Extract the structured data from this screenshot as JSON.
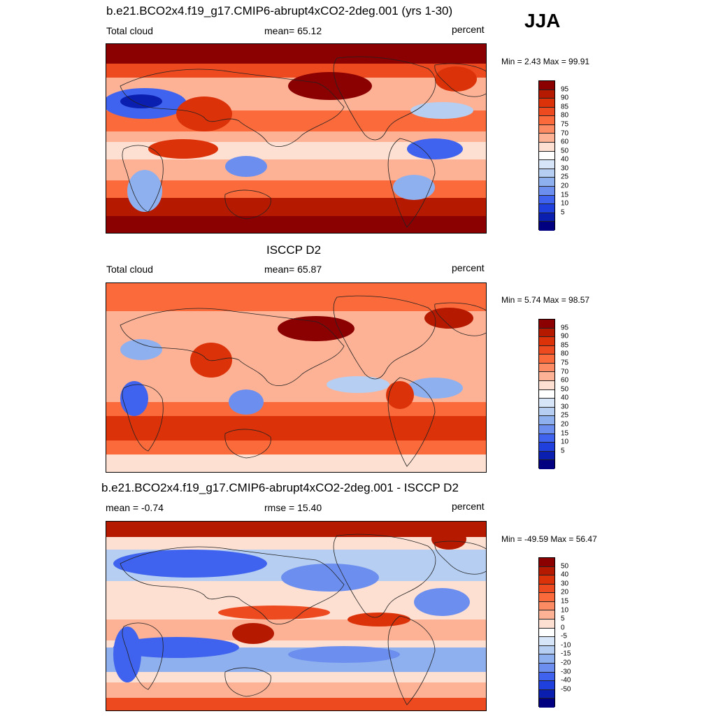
{
  "season_label": "JJA",
  "chart_data": [
    {
      "type": "heatmap",
      "title": "b.e21.BCO2x4.f19_g17.CMIP6-abrupt4xCO2-2deg.001 (yrs 1-30)",
      "left_label": "Total cloud",
      "center_label": "mean=  65.12",
      "units": "percent",
      "minmax": "Min =   2.43 Max =  99.91",
      "stats": {
        "mean": 65.12,
        "min": 2.43,
        "max": 99.91
      },
      "colorbar_labels": [
        "95",
        "90",
        "85",
        "80",
        "75",
        "70",
        "60",
        "50",
        "40",
        "30",
        "25",
        "20",
        "15",
        "10",
        "5"
      ],
      "colors": [
        "#8b0000",
        "#b51a00",
        "#dc3209",
        "#ee4a20",
        "#fb6a3b",
        "#fc8b63",
        "#fdb296",
        "#fee0d2",
        "#ffffff",
        "#d6e6f8",
        "#b5cef1",
        "#8fb0ef",
        "#6c8fef",
        "#3f63ee",
        "#1f40dc",
        "#0a1fb0",
        "#000080"
      ]
    },
    {
      "type": "heatmap",
      "title": "ISCCP D2",
      "left_label": "Total cloud",
      "center_label": "mean=  65.87",
      "units": "percent",
      "minmax": "Min =   5.74 Max =  98.57",
      "stats": {
        "mean": 65.87,
        "min": 5.74,
        "max": 98.57
      },
      "colorbar_labels": [
        "95",
        "90",
        "85",
        "80",
        "75",
        "70",
        "60",
        "50",
        "40",
        "30",
        "25",
        "20",
        "15",
        "10",
        "5"
      ],
      "colors": [
        "#8b0000",
        "#b51a00",
        "#dc3209",
        "#ee4a20",
        "#fb6a3b",
        "#fc8b63",
        "#fdb296",
        "#fee0d2",
        "#ffffff",
        "#d6e6f8",
        "#b5cef1",
        "#8fb0ef",
        "#6c8fef",
        "#3f63ee",
        "#1f40dc",
        "#0a1fb0",
        "#000080"
      ]
    },
    {
      "type": "heatmap",
      "title": "b.e21.BCO2x4.f19_g17.CMIP6-abrupt4xCO2-2deg.001 - ISCCP D2",
      "left_label": "mean =  -0.74",
      "center_label": "rmse =  15.40",
      "units": "percent",
      "minmax": "Min = -49.59 Max =  56.47",
      "stats": {
        "mean": -0.74,
        "rmse": 15.4,
        "min": -49.59,
        "max": 56.47
      },
      "colorbar_labels": [
        "50",
        "40",
        "30",
        "20",
        "15",
        "10",
        "5",
        "0",
        "-5",
        "-10",
        "-15",
        "-20",
        "-30",
        "-40",
        "-50"
      ],
      "colors": [
        "#8b0000",
        "#b51a00",
        "#dc3209",
        "#ee4a20",
        "#fb6a3b",
        "#fc8b63",
        "#fdb296",
        "#fee0d2",
        "#ffffff",
        "#d6e6f8",
        "#b5cef1",
        "#8fb0ef",
        "#6c8fef",
        "#3f63ee",
        "#1f40dc",
        "#0a1fb0",
        "#000080"
      ]
    }
  ]
}
